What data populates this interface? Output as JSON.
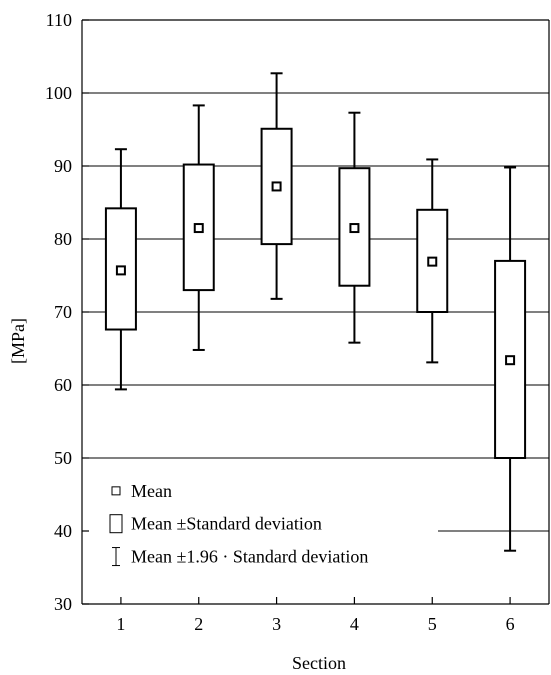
{
  "chart_data": {
    "type": "box",
    "xlabel": "Section",
    "ylabel": "[MPa]",
    "ylim": [
      30,
      110
    ],
    "yticks": [
      30,
      40,
      50,
      60,
      70,
      80,
      90,
      100,
      110
    ],
    "categories": [
      "1",
      "2",
      "3",
      "4",
      "5",
      "6"
    ],
    "grid": "horizontal",
    "legend_position": "bottom-left",
    "legend": [
      {
        "symbol": "square-marker",
        "label": "Mean"
      },
      {
        "symbol": "box",
        "label": "Mean ±Standard deviation"
      },
      {
        "symbol": "whisker",
        "label": "Mean ±1.96 · Standard deviation"
      }
    ],
    "series": [
      {
        "category": "1",
        "mean": 75.7,
        "sd_low": 67.6,
        "sd_high": 84.2,
        "ci_low": 59.4,
        "ci_high": 92.3
      },
      {
        "category": "2",
        "mean": 81.5,
        "sd_low": 73.0,
        "sd_high": 90.2,
        "ci_low": 64.8,
        "ci_high": 98.3
      },
      {
        "category": "3",
        "mean": 87.2,
        "sd_low": 79.3,
        "sd_high": 95.1,
        "ci_low": 71.8,
        "ci_high": 102.7
      },
      {
        "category": "4",
        "mean": 81.5,
        "sd_low": 73.6,
        "sd_high": 89.7,
        "ci_low": 65.8,
        "ci_high": 97.3
      },
      {
        "category": "5",
        "mean": 76.9,
        "sd_low": 70.0,
        "sd_high": 84.0,
        "ci_low": 63.1,
        "ci_high": 90.9
      },
      {
        "category": "6",
        "mean": 63.4,
        "sd_low": 50.0,
        "sd_high": 77.0,
        "ci_low": 37.3,
        "ci_high": 89.8
      }
    ]
  }
}
